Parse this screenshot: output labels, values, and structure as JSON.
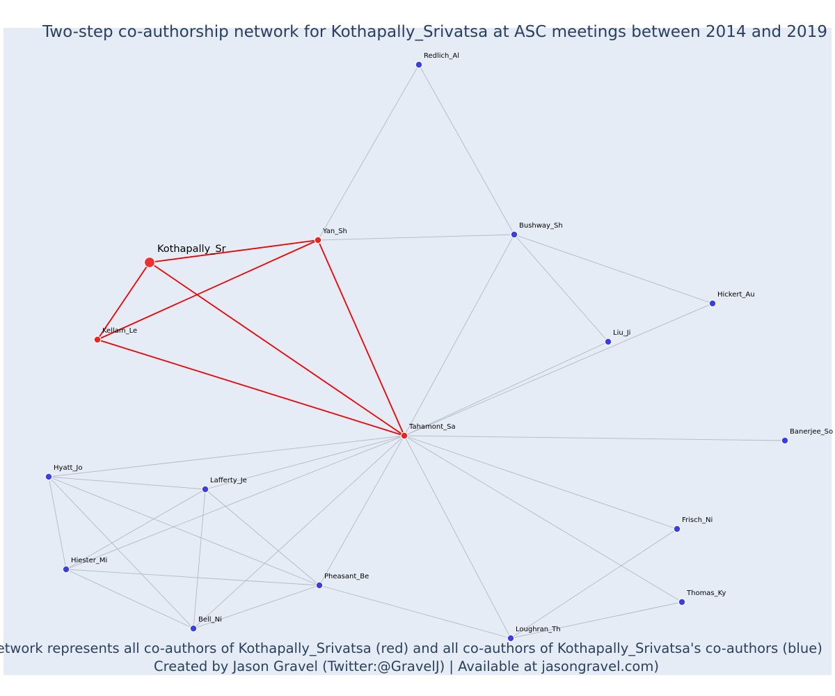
{
  "title": "Two-step co-authorship network for Kothapally_Srivatsa at ASC meetings between 2014 and 2019",
  "footer": {
    "line1": "Network represents all co-authors of Kothapally_Srivatsa (red) and all co-authors of Kothapally_Srivatsa's co-authors (blue)",
    "line2": "Created by Jason Gravel (Twitter:@GravelJ) | Available at jasongravel.com)"
  },
  "colors": {
    "plot_background": "#e5ecf6",
    "title": "#2a3f5f",
    "ego_node": "#ef3030",
    "coauthor_node": "#ef2020",
    "second_step_node": "#3a3ee6",
    "ego_edge": "#ee0000",
    "other_edge": "#b3b7c7"
  },
  "nodes": [
    {
      "id": "Kothapally_Sr",
      "label": "Kothapally_Sr",
      "group": "ego"
    },
    {
      "id": "Yan_Sh",
      "label": "Yan_Sh",
      "group": "coauthor"
    },
    {
      "id": "Kellam_Le",
      "label": "Kellam_Le",
      "group": "coauthor"
    },
    {
      "id": "Tahamont_Sa",
      "label": "Tahamont_Sa",
      "group": "coauthor"
    },
    {
      "id": "Redlich_Al",
      "label": "Redlich_Al",
      "group": "second_step"
    },
    {
      "id": "Bushway_Sh",
      "label": "Bushway_Sh",
      "group": "second_step"
    },
    {
      "id": "Hickert_Au",
      "label": "Hickert_Au",
      "group": "second_step"
    },
    {
      "id": "Liu_Ji",
      "label": "Liu_Ji",
      "group": "second_step"
    },
    {
      "id": "Banerjee_So",
      "label": "Banerjee_So",
      "group": "second_step"
    },
    {
      "id": "Hyatt_Jo",
      "label": "Hyatt_Jo",
      "group": "second_step"
    },
    {
      "id": "Lafferty_Je",
      "label": "Lafferty_Je",
      "group": "second_step"
    },
    {
      "id": "Hiester_Mi",
      "label": "Hiester_Mi",
      "group": "second_step"
    },
    {
      "id": "Pheasant_Be",
      "label": "Pheasant_Be",
      "group": "second_step"
    },
    {
      "id": "Bell_Ni",
      "label": "Bell_Ni",
      "group": "second_step"
    },
    {
      "id": "Frisch_Ni",
      "label": "Frisch_Ni",
      "group": "second_step"
    },
    {
      "id": "Thomas_Ky",
      "label": "Thomas_Ky",
      "group": "second_step"
    },
    {
      "id": "Loughran_Th",
      "label": "Loughran_Th",
      "group": "second_step"
    }
  ],
  "edges": [
    {
      "source": "Kothapally_Sr",
      "target": "Yan_Sh",
      "group": "ego"
    },
    {
      "source": "Kothapally_Sr",
      "target": "Kellam_Le",
      "group": "ego"
    },
    {
      "source": "Kothapally_Sr",
      "target": "Tahamont_Sa",
      "group": "ego"
    },
    {
      "source": "Kellam_Le",
      "target": "Yan_Sh",
      "group": "ego"
    },
    {
      "source": "Kellam_Le",
      "target": "Tahamont_Sa",
      "group": "ego"
    },
    {
      "source": "Yan_Sh",
      "target": "Tahamont_Sa",
      "group": "ego"
    },
    {
      "source": "Yan_Sh",
      "target": "Redlich_Al",
      "group": "other"
    },
    {
      "source": "Yan_Sh",
      "target": "Bushway_Sh",
      "group": "other"
    },
    {
      "source": "Redlich_Al",
      "target": "Bushway_Sh",
      "group": "other"
    },
    {
      "source": "Bushway_Sh",
      "target": "Hickert_Au",
      "group": "other"
    },
    {
      "source": "Bushway_Sh",
      "target": "Liu_Ji",
      "group": "other"
    },
    {
      "source": "Bushway_Sh",
      "target": "Tahamont_Sa",
      "group": "other"
    },
    {
      "source": "Hickert_Au",
      "target": "Tahamont_Sa",
      "group": "other"
    },
    {
      "source": "Liu_Ji",
      "target": "Tahamont_Sa",
      "group": "other"
    },
    {
      "source": "Tahamont_Sa",
      "target": "Banerjee_So",
      "group": "other"
    },
    {
      "source": "Tahamont_Sa",
      "target": "Hyatt_Jo",
      "group": "other"
    },
    {
      "source": "Tahamont_Sa",
      "target": "Lafferty_Je",
      "group": "other"
    },
    {
      "source": "Tahamont_Sa",
      "target": "Hiester_Mi",
      "group": "other"
    },
    {
      "source": "Tahamont_Sa",
      "target": "Pheasant_Be",
      "group": "other"
    },
    {
      "source": "Tahamont_Sa",
      "target": "Bell_Ni",
      "group": "other"
    },
    {
      "source": "Tahamont_Sa",
      "target": "Loughran_Th",
      "group": "other"
    },
    {
      "source": "Tahamont_Sa",
      "target": "Frisch_Ni",
      "group": "other"
    },
    {
      "source": "Tahamont_Sa",
      "target": "Thomas_Ky",
      "group": "other"
    },
    {
      "source": "Hyatt_Jo",
      "target": "Lafferty_Je",
      "group": "other"
    },
    {
      "source": "Hyatt_Jo",
      "target": "Hiester_Mi",
      "group": "other"
    },
    {
      "source": "Hyatt_Jo",
      "target": "Bell_Ni",
      "group": "other"
    },
    {
      "source": "Hyatt_Jo",
      "target": "Pheasant_Be",
      "group": "other"
    },
    {
      "source": "Lafferty_Je",
      "target": "Hiester_Mi",
      "group": "other"
    },
    {
      "source": "Lafferty_Je",
      "target": "Bell_Ni",
      "group": "other"
    },
    {
      "source": "Lafferty_Je",
      "target": "Pheasant_Be",
      "group": "other"
    },
    {
      "source": "Hiester_Mi",
      "target": "Bell_Ni",
      "group": "other"
    },
    {
      "source": "Hiester_Mi",
      "target": "Pheasant_Be",
      "group": "other"
    },
    {
      "source": "Bell_Ni",
      "target": "Pheasant_Be",
      "group": "other"
    },
    {
      "source": "Pheasant_Be",
      "target": "Loughran_Th",
      "group": "other"
    },
    {
      "source": "Loughran_Th",
      "target": "Frisch_Ni",
      "group": "other"
    },
    {
      "source": "Loughran_Th",
      "target": "Thomas_Ky",
      "group": "other"
    }
  ]
}
